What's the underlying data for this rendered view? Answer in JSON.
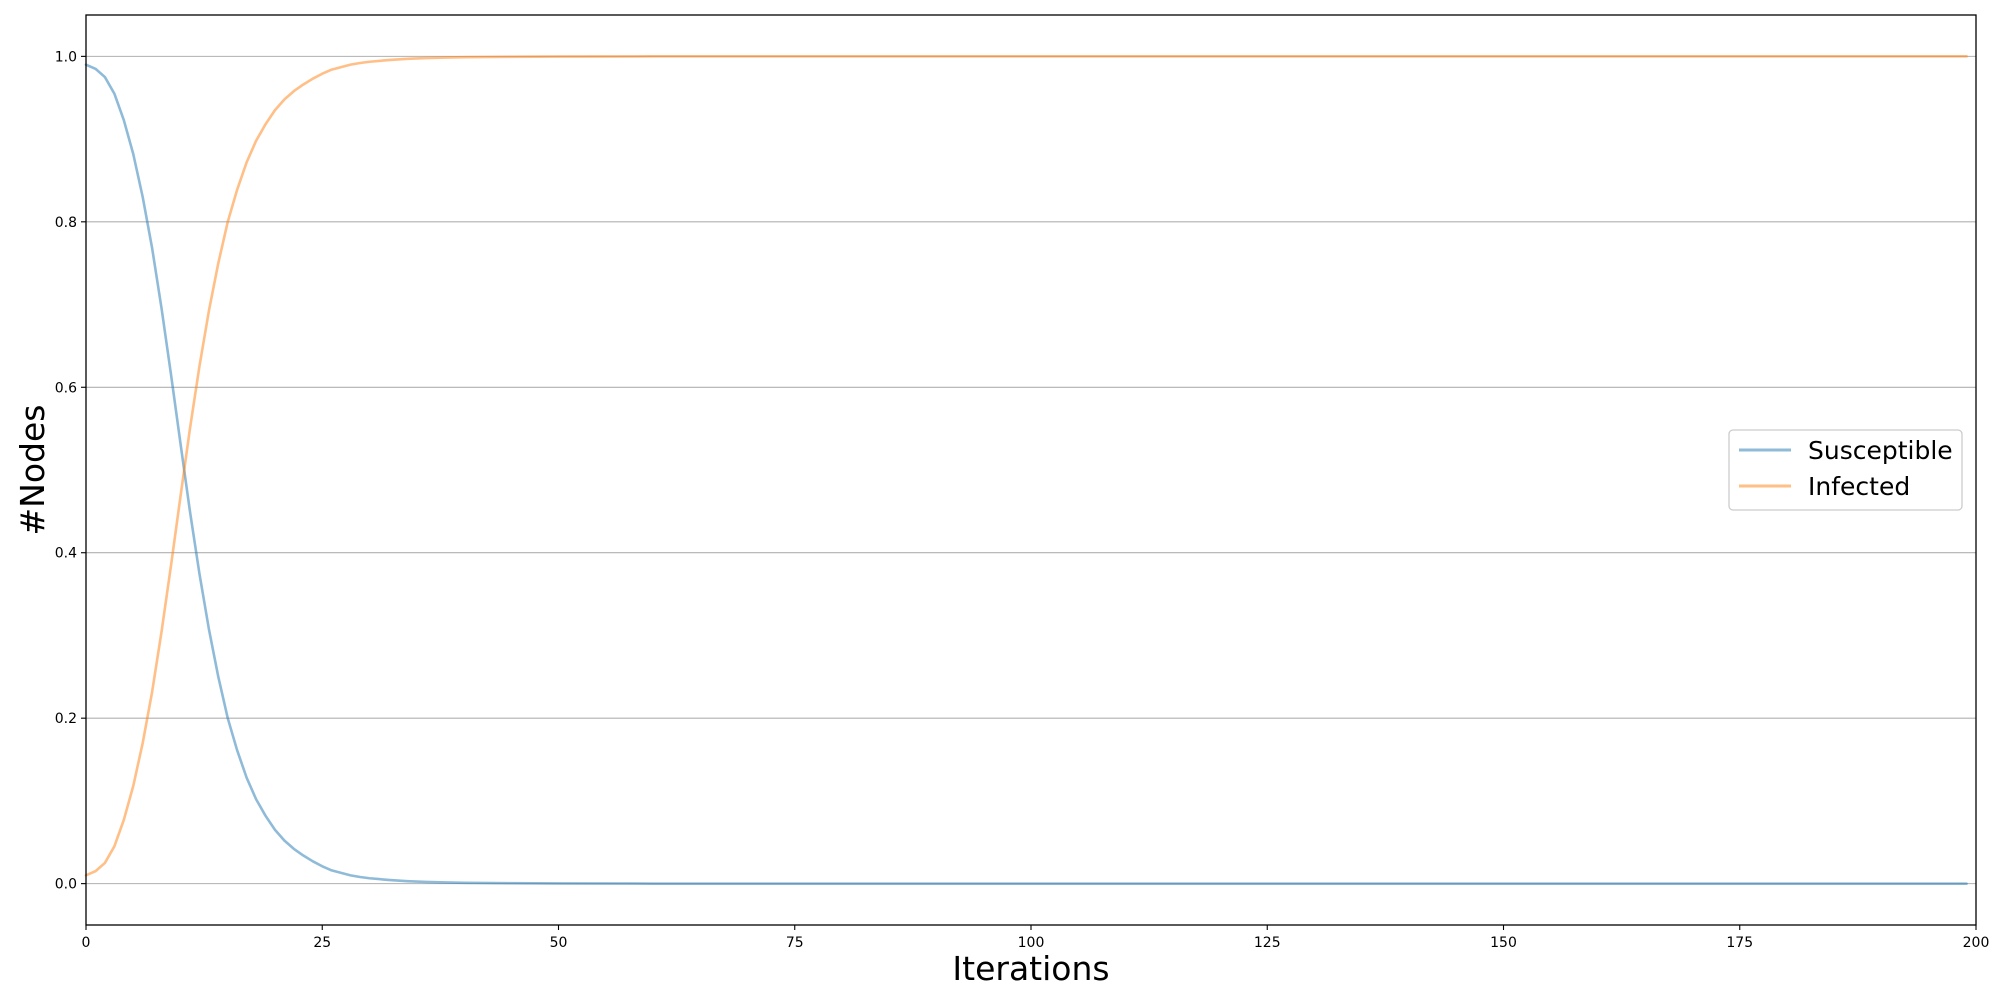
{
  "chart_data": {
    "type": "line",
    "title": "",
    "xlabel": "Iterations",
    "ylabel": "#Nodes",
    "xlim": [
      0,
      200
    ],
    "ylim": [
      -0.05,
      1.05
    ],
    "xticks": [
      0,
      25,
      50,
      75,
      100,
      125,
      150,
      175,
      200
    ],
    "xtick_labels": [
      "0",
      "25",
      "50",
      "75",
      "100",
      "125",
      "150",
      "175",
      "200"
    ],
    "yticks": [
      0.0,
      0.2,
      0.4,
      0.6,
      0.8,
      1.0
    ],
    "ytick_labels": [
      "0.0",
      "0.2",
      "0.4",
      "0.6",
      "0.8",
      "1.0"
    ],
    "grid": "horizontal",
    "legend_position": "center-right",
    "series": [
      {
        "name": "Susceptible",
        "color": "#1f77b4",
        "opacity": 0.5,
        "x": [
          0,
          1,
          2,
          3,
          4,
          5,
          6,
          7,
          8,
          9,
          10,
          11,
          12,
          13,
          14,
          15,
          16,
          17,
          18,
          19,
          20,
          21,
          22,
          23,
          24,
          25,
          26,
          27,
          28,
          29,
          30,
          32,
          34,
          36,
          38,
          40,
          45,
          50,
          60,
          70,
          80,
          100,
          150,
          199
        ],
        "values": [
          0.99,
          0.985,
          0.975,
          0.955,
          0.923,
          0.882,
          0.83,
          0.768,
          0.695,
          0.615,
          0.532,
          0.45,
          0.375,
          0.308,
          0.25,
          0.2,
          0.161,
          0.128,
          0.102,
          0.082,
          0.065,
          0.052,
          0.042,
          0.034,
          0.027,
          0.021,
          0.016,
          0.013,
          0.01,
          0.008,
          0.0065,
          0.0045,
          0.003,
          0.002,
          0.0015,
          0.001,
          0.0005,
          0.0002,
          0.0,
          0.0,
          0.0,
          0.0,
          0.0,
          0.0
        ]
      },
      {
        "name": "Infected",
        "color": "#ff7f0e",
        "opacity": 0.5,
        "x": [
          0,
          1,
          2,
          3,
          4,
          5,
          6,
          7,
          8,
          9,
          10,
          11,
          12,
          13,
          14,
          15,
          16,
          17,
          18,
          19,
          20,
          21,
          22,
          23,
          24,
          25,
          26,
          27,
          28,
          29,
          30,
          32,
          34,
          36,
          38,
          40,
          45,
          50,
          60,
          70,
          80,
          100,
          150,
          199
        ],
        "values": [
          0.01,
          0.015,
          0.025,
          0.045,
          0.077,
          0.118,
          0.17,
          0.232,
          0.305,
          0.385,
          0.468,
          0.55,
          0.625,
          0.692,
          0.75,
          0.8,
          0.839,
          0.872,
          0.898,
          0.918,
          0.935,
          0.948,
          0.958,
          0.966,
          0.973,
          0.979,
          0.984,
          0.987,
          0.99,
          0.992,
          0.9935,
          0.9955,
          0.997,
          0.998,
          0.9985,
          0.999,
          0.9995,
          0.9998,
          1.0,
          1.0,
          1.0,
          1.0,
          1.0,
          1.0
        ]
      }
    ]
  }
}
